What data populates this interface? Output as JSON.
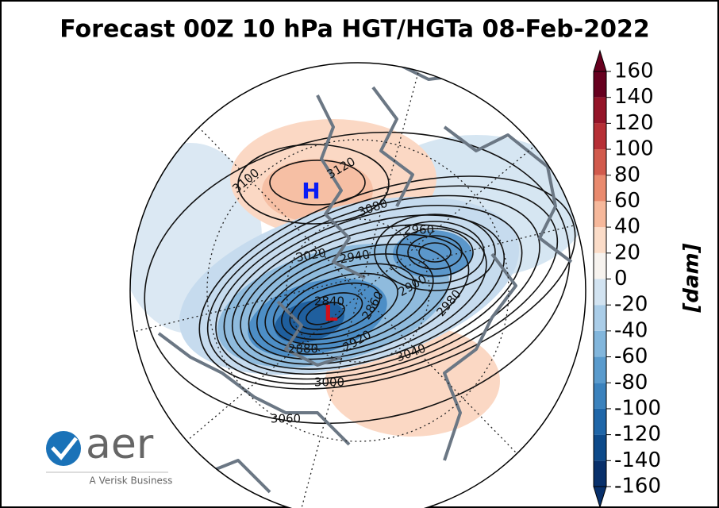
{
  "title": "Forecast 00Z 10 hPa HGT/HGTa 08-Feb-2022",
  "map": {
    "high_label": "H",
    "low_label": "L",
    "contour_labels": [
      "3100",
      "3120",
      "3080",
      "2960",
      "3020",
      "2940",
      "2840",
      "2860",
      "2900",
      "2980",
      "2880",
      "2920",
      "3040",
      "3000",
      "3060"
    ]
  },
  "colorbar": {
    "label": "[dam]",
    "lim": [
      -160,
      160
    ],
    "ticks": [
      -160,
      -140,
      -120,
      -100,
      -80,
      -60,
      -40,
      -20,
      0,
      20,
      40,
      60,
      80,
      100,
      120,
      140,
      160
    ],
    "colors": [
      "#08306b",
      "#0d4a8a",
      "#1f66a8",
      "#3b82bd",
      "#5a9bcd",
      "#82b6dc",
      "#aacde8",
      "#d2e3f1",
      "#f7f3ef",
      "#fbdcc8",
      "#f6b89b",
      "#e98a6e",
      "#d15a4c",
      "#b62f35",
      "#941428",
      "#67001f"
    ]
  },
  "logo": {
    "name": "aer",
    "tagline": "A Verisk Business"
  }
}
